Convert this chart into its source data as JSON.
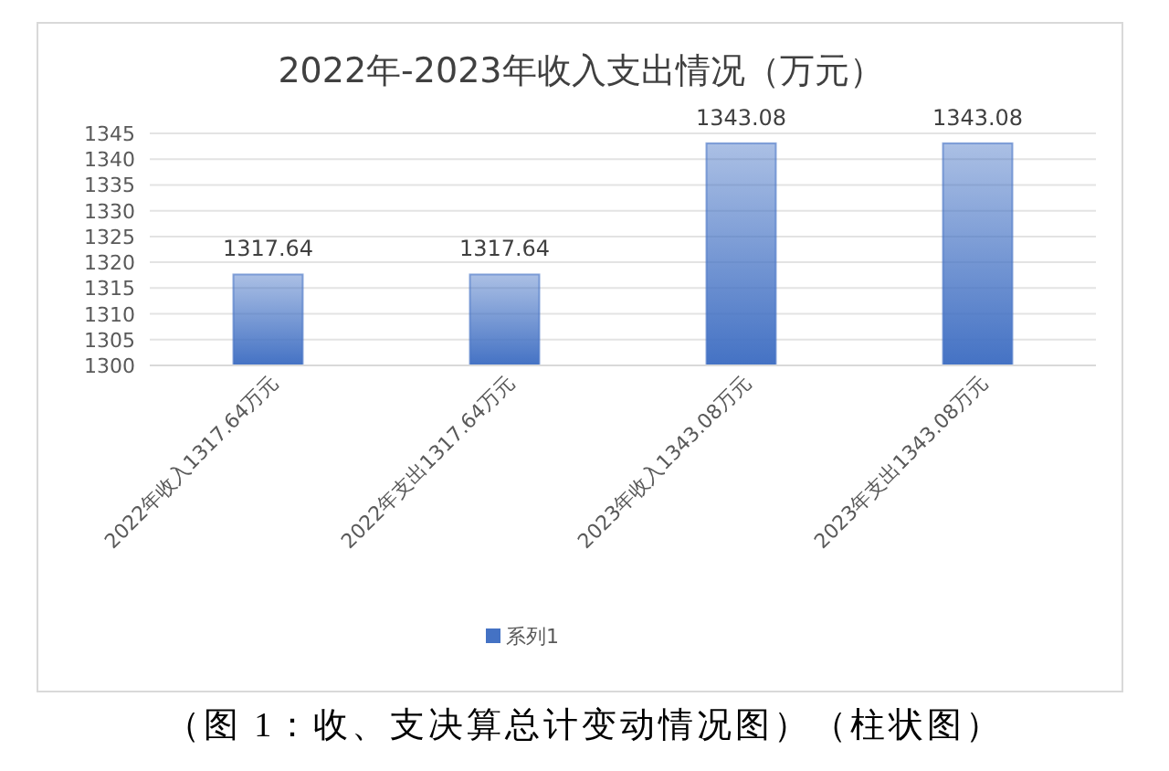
{
  "chart_data": {
    "type": "bar",
    "title": "2022年-2023年收入支出情况（万元）",
    "categories": [
      "2022年收入1317.64万元",
      "2022年支出1317.64万元",
      "2023年收入1343.08万元",
      "2023年支出1343.08万元"
    ],
    "series": [
      {
        "name": "系列1",
        "color": "#4472c4",
        "values": [
          1317.64,
          1317.64,
          1343.08,
          1343.08
        ]
      }
    ],
    "ylim": [
      1300,
      1345
    ],
    "yticks": [
      1300,
      1305,
      1310,
      1315,
      1320,
      1325,
      1330,
      1335,
      1340,
      1345
    ],
    "grid": "y",
    "legend": "bottom",
    "data_labels": true,
    "annotations": [
      "（图 1：收、支决算总计变动情况图）（柱状图）"
    ]
  }
}
